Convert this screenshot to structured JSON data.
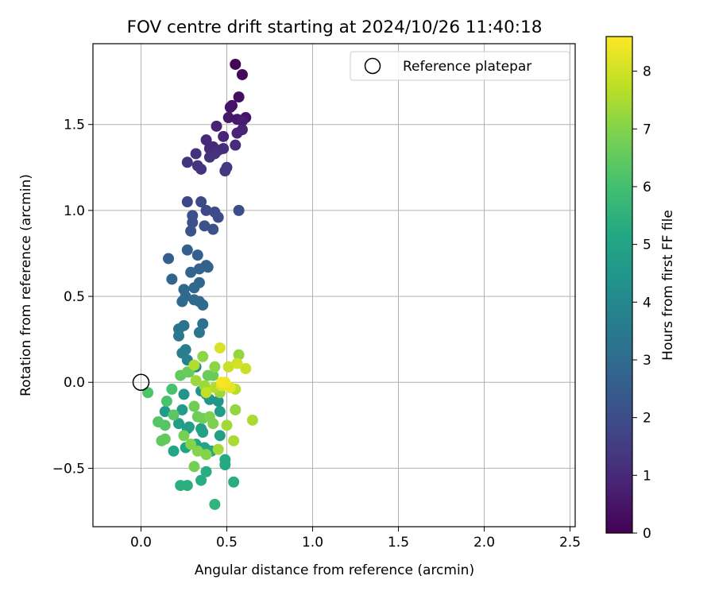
{
  "chart_data": {
    "type": "scatter",
    "title": "FOV centre drift starting at 2024/10/26 11:40:18",
    "xlabel": "Angular distance from reference (arcmin)",
    "ylabel": "Rotation from reference (arcmin)",
    "xlim": [
      -0.28,
      2.53
    ],
    "ylim": [
      -0.84,
      1.97
    ],
    "xticks": [
      0.0,
      0.5,
      1.0,
      1.5,
      2.0,
      2.5
    ],
    "xtick_labels": [
      "0.0",
      "0.5",
      "1.0",
      "1.5",
      "2.0",
      "2.5"
    ],
    "yticks": [
      -0.5,
      0.0,
      0.5,
      1.0,
      1.5
    ],
    "ytick_labels": [
      "−0.5",
      "0.0",
      "0.5",
      "1.0",
      "1.5"
    ],
    "grid": true,
    "legend": {
      "position": "top-right",
      "entries": [
        "Reference platepar"
      ]
    },
    "reference_point": {
      "x": 0.0,
      "y": 0.0
    },
    "colorbar": {
      "label": "Hours from first FF file",
      "range": [
        0,
        8.6
      ],
      "ticks": [
        0,
        1,
        2,
        3,
        4,
        5,
        6,
        7,
        8
      ],
      "tick_labels": [
        "0",
        "1",
        "2",
        "3",
        "4",
        "5",
        "6",
        "7",
        "8"
      ],
      "colormap": "viridis"
    },
    "points": [
      {
        "x": 0.55,
        "y": 1.85,
        "h": 0.1
      },
      {
        "x": 0.59,
        "y": 1.79,
        "h": 0.2
      },
      {
        "x": 0.57,
        "y": 1.66,
        "h": 0.3
      },
      {
        "x": 0.53,
        "y": 1.61,
        "h": 0.4
      },
      {
        "x": 0.52,
        "y": 1.6,
        "h": 0.5
      },
      {
        "x": 0.61,
        "y": 1.54,
        "h": 0.5
      },
      {
        "x": 0.56,
        "y": 1.53,
        "h": 0.6
      },
      {
        "x": 0.51,
        "y": 1.54,
        "h": 0.6
      },
      {
        "x": 0.59,
        "y": 1.52,
        "h": 0.7
      },
      {
        "x": 0.44,
        "y": 1.49,
        "h": 0.8
      },
      {
        "x": 0.59,
        "y": 1.47,
        "h": 0.8
      },
      {
        "x": 0.56,
        "y": 1.45,
        "h": 0.9
      },
      {
        "x": 0.48,
        "y": 1.43,
        "h": 0.9
      },
      {
        "x": 0.38,
        "y": 1.41,
        "h": 1.0
      },
      {
        "x": 0.42,
        "y": 1.37,
        "h": 1.0
      },
      {
        "x": 0.4,
        "y": 1.36,
        "h": 1.0
      },
      {
        "x": 0.48,
        "y": 1.36,
        "h": 1.1
      },
      {
        "x": 0.55,
        "y": 1.38,
        "h": 1.1
      },
      {
        "x": 0.45,
        "y": 1.35,
        "h": 1.1
      },
      {
        "x": 0.43,
        "y": 1.33,
        "h": 1.2
      },
      {
        "x": 0.32,
        "y": 1.33,
        "h": 1.2
      },
      {
        "x": 0.4,
        "y": 1.31,
        "h": 1.2
      },
      {
        "x": 0.27,
        "y": 1.28,
        "h": 1.3
      },
      {
        "x": 0.33,
        "y": 1.26,
        "h": 1.3
      },
      {
        "x": 0.35,
        "y": 1.24,
        "h": 1.3
      },
      {
        "x": 0.5,
        "y": 1.25,
        "h": 1.4
      },
      {
        "x": 0.49,
        "y": 1.23,
        "h": 1.4
      },
      {
        "x": 0.27,
        "y": 1.05,
        "h": 1.8
      },
      {
        "x": 0.35,
        "y": 1.05,
        "h": 1.9
      },
      {
        "x": 0.38,
        "y": 1.0,
        "h": 1.9
      },
      {
        "x": 0.43,
        "y": 0.99,
        "h": 2.0
      },
      {
        "x": 0.57,
        "y": 1.0,
        "h": 2.0
      },
      {
        "x": 0.45,
        "y": 0.96,
        "h": 2.0
      },
      {
        "x": 0.3,
        "y": 0.97,
        "h": 2.1
      },
      {
        "x": 0.3,
        "y": 0.93,
        "h": 2.1
      },
      {
        "x": 0.37,
        "y": 0.91,
        "h": 2.1
      },
      {
        "x": 0.42,
        "y": 0.89,
        "h": 2.2
      },
      {
        "x": 0.29,
        "y": 0.88,
        "h": 2.2
      },
      {
        "x": 0.16,
        "y": 0.72,
        "h": 2.6
      },
      {
        "x": 0.27,
        "y": 0.77,
        "h": 2.6
      },
      {
        "x": 0.33,
        "y": 0.74,
        "h": 2.6
      },
      {
        "x": 0.38,
        "y": 0.68,
        "h": 2.7
      },
      {
        "x": 0.39,
        "y": 0.67,
        "h": 2.7
      },
      {
        "x": 0.34,
        "y": 0.66,
        "h": 2.7
      },
      {
        "x": 0.29,
        "y": 0.64,
        "h": 2.8
      },
      {
        "x": 0.18,
        "y": 0.6,
        "h": 2.8
      },
      {
        "x": 0.34,
        "y": 0.58,
        "h": 2.8
      },
      {
        "x": 0.25,
        "y": 0.54,
        "h": 2.9
      },
      {
        "x": 0.31,
        "y": 0.55,
        "h": 2.9
      },
      {
        "x": 0.26,
        "y": 0.5,
        "h": 2.9
      },
      {
        "x": 0.24,
        "y": 0.47,
        "h": 3.0
      },
      {
        "x": 0.31,
        "y": 0.48,
        "h": 3.0
      },
      {
        "x": 0.34,
        "y": 0.47,
        "h": 3.0
      },
      {
        "x": 0.36,
        "y": 0.45,
        "h": 3.0
      },
      {
        "x": 0.36,
        "y": 0.34,
        "h": 3.2
      },
      {
        "x": 0.25,
        "y": 0.33,
        "h": 3.3
      },
      {
        "x": 0.22,
        "y": 0.31,
        "h": 3.3
      },
      {
        "x": 0.34,
        "y": 0.29,
        "h": 3.4
      },
      {
        "x": 0.22,
        "y": 0.27,
        "h": 3.4
      },
      {
        "x": 0.26,
        "y": 0.19,
        "h": 3.6
      },
      {
        "x": 0.24,
        "y": 0.17,
        "h": 3.6
      },
      {
        "x": 0.27,
        "y": 0.13,
        "h": 3.7
      },
      {
        "x": 0.32,
        "y": 0.09,
        "h": 4.2
      },
      {
        "x": 0.35,
        "y": -0.05,
        "h": 4.4
      },
      {
        "x": 0.25,
        "y": -0.07,
        "h": 4.4
      },
      {
        "x": 0.38,
        "y": -0.07,
        "h": 4.5
      },
      {
        "x": 0.4,
        "y": -0.1,
        "h": 4.5
      },
      {
        "x": 0.45,
        "y": -0.11,
        "h": 4.5
      },
      {
        "x": 0.14,
        "y": -0.17,
        "h": 4.7
      },
      {
        "x": 0.24,
        "y": -0.16,
        "h": 4.7
      },
      {
        "x": 0.46,
        "y": -0.17,
        "h": 4.7
      },
      {
        "x": 0.22,
        "y": -0.24,
        "h": 4.8
      },
      {
        "x": 0.28,
        "y": -0.26,
        "h": 4.8
      },
      {
        "x": 0.27,
        "y": -0.27,
        "h": 4.8
      },
      {
        "x": 0.36,
        "y": -0.29,
        "h": 4.9
      },
      {
        "x": 0.35,
        "y": -0.27,
        "h": 4.9
      },
      {
        "x": 0.46,
        "y": -0.31,
        "h": 4.9
      },
      {
        "x": 0.32,
        "y": -0.36,
        "h": 5.0
      },
      {
        "x": 0.26,
        "y": -0.38,
        "h": 5.0
      },
      {
        "x": 0.19,
        "y": -0.4,
        "h": 5.1
      },
      {
        "x": 0.37,
        "y": -0.38,
        "h": 5.1
      },
      {
        "x": 0.41,
        "y": -0.4,
        "h": 5.1
      },
      {
        "x": 0.49,
        "y": -0.45,
        "h": 5.2
      },
      {
        "x": 0.49,
        "y": -0.48,
        "h": 5.2
      },
      {
        "x": 0.38,
        "y": -0.52,
        "h": 5.3
      },
      {
        "x": 0.35,
        "y": -0.57,
        "h": 5.3
      },
      {
        "x": 0.54,
        "y": -0.58,
        "h": 5.4
      },
      {
        "x": 0.23,
        "y": -0.6,
        "h": 5.4
      },
      {
        "x": 0.27,
        "y": -0.6,
        "h": 5.4
      },
      {
        "x": 0.43,
        "y": -0.71,
        "h": 5.6
      },
      {
        "x": 0.04,
        "y": -0.06,
        "h": 6.2
      },
      {
        "x": 0.18,
        "y": -0.04,
        "h": 6.1
      },
      {
        "x": 0.15,
        "y": -0.11,
        "h": 6.1
      },
      {
        "x": 0.1,
        "y": -0.23,
        "h": 6.3
      },
      {
        "x": 0.14,
        "y": -0.25,
        "h": 6.3
      },
      {
        "x": 0.19,
        "y": -0.19,
        "h": 6.4
      },
      {
        "x": 0.12,
        "y": -0.34,
        "h": 6.5
      },
      {
        "x": 0.14,
        "y": -0.33,
        "h": 6.5
      },
      {
        "x": 0.23,
        "y": 0.04,
        "h": 6.5
      },
      {
        "x": 0.27,
        "y": 0.06,
        "h": 6.6
      },
      {
        "x": 0.28,
        "y": 0.06,
        "h": 6.6
      },
      {
        "x": 0.39,
        "y": 0.04,
        "h": 6.6
      },
      {
        "x": 0.42,
        "y": 0.04,
        "h": 6.6
      },
      {
        "x": 0.33,
        "y": -0.2,
        "h": 6.7
      },
      {
        "x": 0.36,
        "y": -0.21,
        "h": 6.7
      },
      {
        "x": 0.31,
        "y": -0.14,
        "h": 6.7
      },
      {
        "x": 0.25,
        "y": -0.31,
        "h": 6.8
      },
      {
        "x": 0.31,
        "y": -0.49,
        "h": 6.8
      },
      {
        "x": 0.4,
        "y": -0.2,
        "h": 6.9
      },
      {
        "x": 0.42,
        "y": -0.24,
        "h": 6.9
      },
      {
        "x": 0.38,
        "y": -0.42,
        "h": 7.0
      },
      {
        "x": 0.29,
        "y": -0.36,
        "h": 7.0
      },
      {
        "x": 0.33,
        "y": -0.4,
        "h": 7.0
      },
      {
        "x": 0.36,
        "y": 0.15,
        "h": 7.1
      },
      {
        "x": 0.43,
        "y": 0.09,
        "h": 7.1
      },
      {
        "x": 0.55,
        "y": -0.16,
        "h": 7.2
      },
      {
        "x": 0.57,
        "y": 0.16,
        "h": 7.2
      },
      {
        "x": 0.32,
        "y": 0.01,
        "h": 7.3
      },
      {
        "x": 0.37,
        "y": -0.02,
        "h": 7.3
      },
      {
        "x": 0.46,
        "y": -0.06,
        "h": 7.3
      },
      {
        "x": 0.45,
        "y": -0.39,
        "h": 7.4
      },
      {
        "x": 0.5,
        "y": -0.25,
        "h": 7.4
      },
      {
        "x": 0.54,
        "y": -0.34,
        "h": 7.5
      },
      {
        "x": 0.65,
        "y": -0.22,
        "h": 7.5
      },
      {
        "x": 0.31,
        "y": 0.1,
        "h": 7.6
      },
      {
        "x": 0.43,
        "y": -0.03,
        "h": 7.6
      },
      {
        "x": 0.55,
        "y": -0.04,
        "h": 7.7
      },
      {
        "x": 0.38,
        "y": -0.06,
        "h": 7.8
      },
      {
        "x": 0.51,
        "y": 0.09,
        "h": 7.9
      },
      {
        "x": 0.61,
        "y": 0.08,
        "h": 7.9
      },
      {
        "x": 0.56,
        "y": 0.11,
        "h": 8.0
      },
      {
        "x": 0.46,
        "y": 0.2,
        "h": 8.1
      },
      {
        "x": 0.47,
        "y": -0.02,
        "h": 8.2
      },
      {
        "x": 0.52,
        "y": -0.03,
        "h": 8.3
      },
      {
        "x": 0.49,
        "y": 0.0,
        "h": 8.4
      },
      {
        "x": 0.47,
        "y": 0.0,
        "h": 8.5
      }
    ]
  }
}
